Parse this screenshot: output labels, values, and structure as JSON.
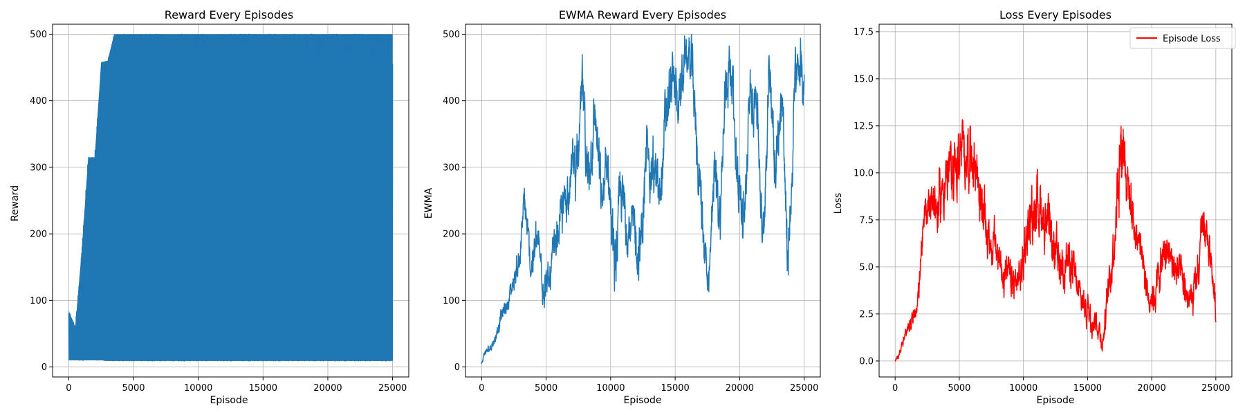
{
  "chart_data": [
    {
      "type": "line",
      "title": "Reward Every Episodes",
      "xlabel": "Episode",
      "ylabel": "Reward",
      "xlim": [
        -1250,
        26250
      ],
      "ylim": [
        -15,
        515
      ],
      "xticks": [
        0,
        5000,
        10000,
        15000,
        20000,
        25000
      ],
      "yticks": [
        0,
        100,
        200,
        300,
        400,
        500
      ],
      "grid": true,
      "legend": null,
      "color": "#1f77b4",
      "series": [
        {
          "style": "oscillating_band",
          "x": [
            0,
            500,
            1000,
            1500,
            2000,
            2500,
            3000,
            3500,
            4000,
            5000,
            6000,
            8000,
            10000,
            12000,
            14000,
            16000,
            18000,
            20000,
            22000,
            24000,
            25000
          ],
          "upper": [
            85,
            60,
            175,
            315,
            315,
            458,
            460,
            500,
            500,
            500,
            500,
            500,
            500,
            500,
            500,
            500,
            500,
            500,
            500,
            500,
            500
          ],
          "lower": [
            10,
            10,
            10,
            10,
            10,
            10,
            9,
            9,
            9,
            9,
            9,
            9,
            9,
            9,
            9,
            9,
            9,
            9,
            9,
            9,
            9
          ]
        }
      ]
    },
    {
      "type": "line",
      "title": "EWMA Reward Every Episodes",
      "xlabel": "Episode",
      "ylabel": "EWMA",
      "xlim": [
        -1250,
        26250
      ],
      "ylim": [
        -15,
        515
      ],
      "xticks": [
        0,
        5000,
        10000,
        15000,
        20000,
        25000
      ],
      "yticks": [
        0,
        100,
        200,
        300,
        400,
        500
      ],
      "grid": true,
      "legend": null,
      "color": "#1f77b4",
      "series": [
        {
          "x": [
            0,
            200,
            500,
            1000,
            1500,
            2000,
            2500,
            3000,
            3300,
            3800,
            4300,
            4800,
            5200,
            5600,
            6000,
            6500,
            7000,
            7500,
            7800,
            8200,
            8800,
            9300,
            9800,
            10300,
            10800,
            11300,
            11800,
            12300,
            12800,
            13300,
            13800,
            14300,
            14800,
            15300,
            15800,
            16300,
            16800,
            17300,
            17600,
            18000,
            18500,
            18900,
            19300,
            19800,
            20300,
            20800,
            21300,
            21800,
            22300,
            22800,
            23300,
            23700,
            24000,
            24300,
            24700,
            25000
          ],
          "y": [
            5,
            20,
            25,
            40,
            75,
            95,
            130,
            170,
            250,
            150,
            190,
            130,
            120,
            170,
            210,
            250,
            300,
            310,
            420,
            280,
            380,
            240,
            310,
            140,
            260,
            220,
            200,
            170,
            320,
            300,
            250,
            380,
            430,
            400,
            470,
            450,
            300,
            180,
            100,
            300,
            230,
            420,
            470,
            300,
            200,
            400,
            420,
            170,
            460,
            300,
            420,
            150,
            260,
            430,
            450,
            420
          ],
          "spread": [
            5,
            5,
            6,
            8,
            12,
            15,
            18,
            25,
            25,
            30,
            30,
            30,
            30,
            30,
            35,
            35,
            40,
            45,
            45,
            45,
            45,
            45,
            45,
            45,
            45,
            45,
            45,
            45,
            45,
            45,
            45,
            45,
            45,
            45,
            40,
            40,
            45,
            45,
            30,
            45,
            45,
            45,
            45,
            45,
            45,
            45,
            45,
            45,
            40,
            45,
            45,
            45,
            45,
            45,
            40,
            35
          ]
        }
      ]
    },
    {
      "type": "line",
      "title": "Loss Every Episodes",
      "xlabel": "Episode",
      "ylabel": "Loss",
      "xlim": [
        -1250,
        26250
      ],
      "ylim": [
        -0.85,
        17.9
      ],
      "xticks": [
        0,
        5000,
        10000,
        15000,
        20000,
        25000
      ],
      "yticks": [
        0.0,
        2.5,
        5.0,
        7.5,
        10.0,
        12.5,
        15.0,
        17.5
      ],
      "ytick_labels": [
        "0.0",
        "2.5",
        "5.0",
        "7.5",
        "10.0",
        "12.5",
        "15.0",
        "17.5"
      ],
      "grid": true,
      "legend": "top-right",
      "color": "#ff0000",
      "series": [
        {
          "name": "Episode Loss",
          "x": [
            0,
            300,
            700,
            1200,
            1800,
            2300,
            2800,
            3300,
            3800,
            4300,
            4800,
            5300,
            5800,
            6300,
            6800,
            7300,
            7800,
            8300,
            8800,
            9300,
            9800,
            10300,
            10800,
            11300,
            11800,
            12300,
            12800,
            13300,
            13800,
            14300,
            14800,
            15300,
            15800,
            16200,
            16500,
            17000,
            17500,
            17800,
            18200,
            18700,
            19200,
            19700,
            20200,
            20700,
            21200,
            21700,
            22200,
            22700,
            23200,
            23700,
            24000,
            24300,
            24700,
            25000
          ],
          "y": [
            0.0,
            0.4,
            1.2,
            1.8,
            3.5,
            7.5,
            9.0,
            8.0,
            9.5,
            10.0,
            10.5,
            11.0,
            11.2,
            10.5,
            8.0,
            6.5,
            6.0,
            5.0,
            4.5,
            4.0,
            4.5,
            7.0,
            8.0,
            8.5,
            7.0,
            6.0,
            5.0,
            5.5,
            5.0,
            3.5,
            3.0,
            2.5,
            2.0,
            1.0,
            3.0,
            6.0,
            11.0,
            12.0,
            9.0,
            7.0,
            6.0,
            3.5,
            3.5,
            5.0,
            6.0,
            5.0,
            4.5,
            3.5,
            3.0,
            5.0,
            7.5,
            6.5,
            5.0,
            2.5
          ],
          "spread": [
            0.1,
            0.2,
            0.3,
            0.5,
            0.7,
            1.0,
            1.3,
            1.5,
            1.6,
            1.6,
            1.8,
            1.8,
            1.8,
            1.8,
            1.5,
            1.3,
            1.2,
            1.1,
            1.0,
            1.0,
            1.1,
            1.4,
            1.6,
            1.8,
            1.6,
            1.4,
            1.2,
            1.2,
            1.1,
            1.0,
            0.9,
            0.9,
            0.8,
            0.6,
            0.8,
            1.5,
            2.2,
            2.2,
            1.6,
            1.2,
            1.0,
            0.8,
            0.9,
            1.1,
            1.2,
            1.1,
            1.0,
            0.9,
            0.9,
            1.1,
            1.2,
            1.1,
            1.0,
            0.6
          ]
        }
      ]
    }
  ]
}
